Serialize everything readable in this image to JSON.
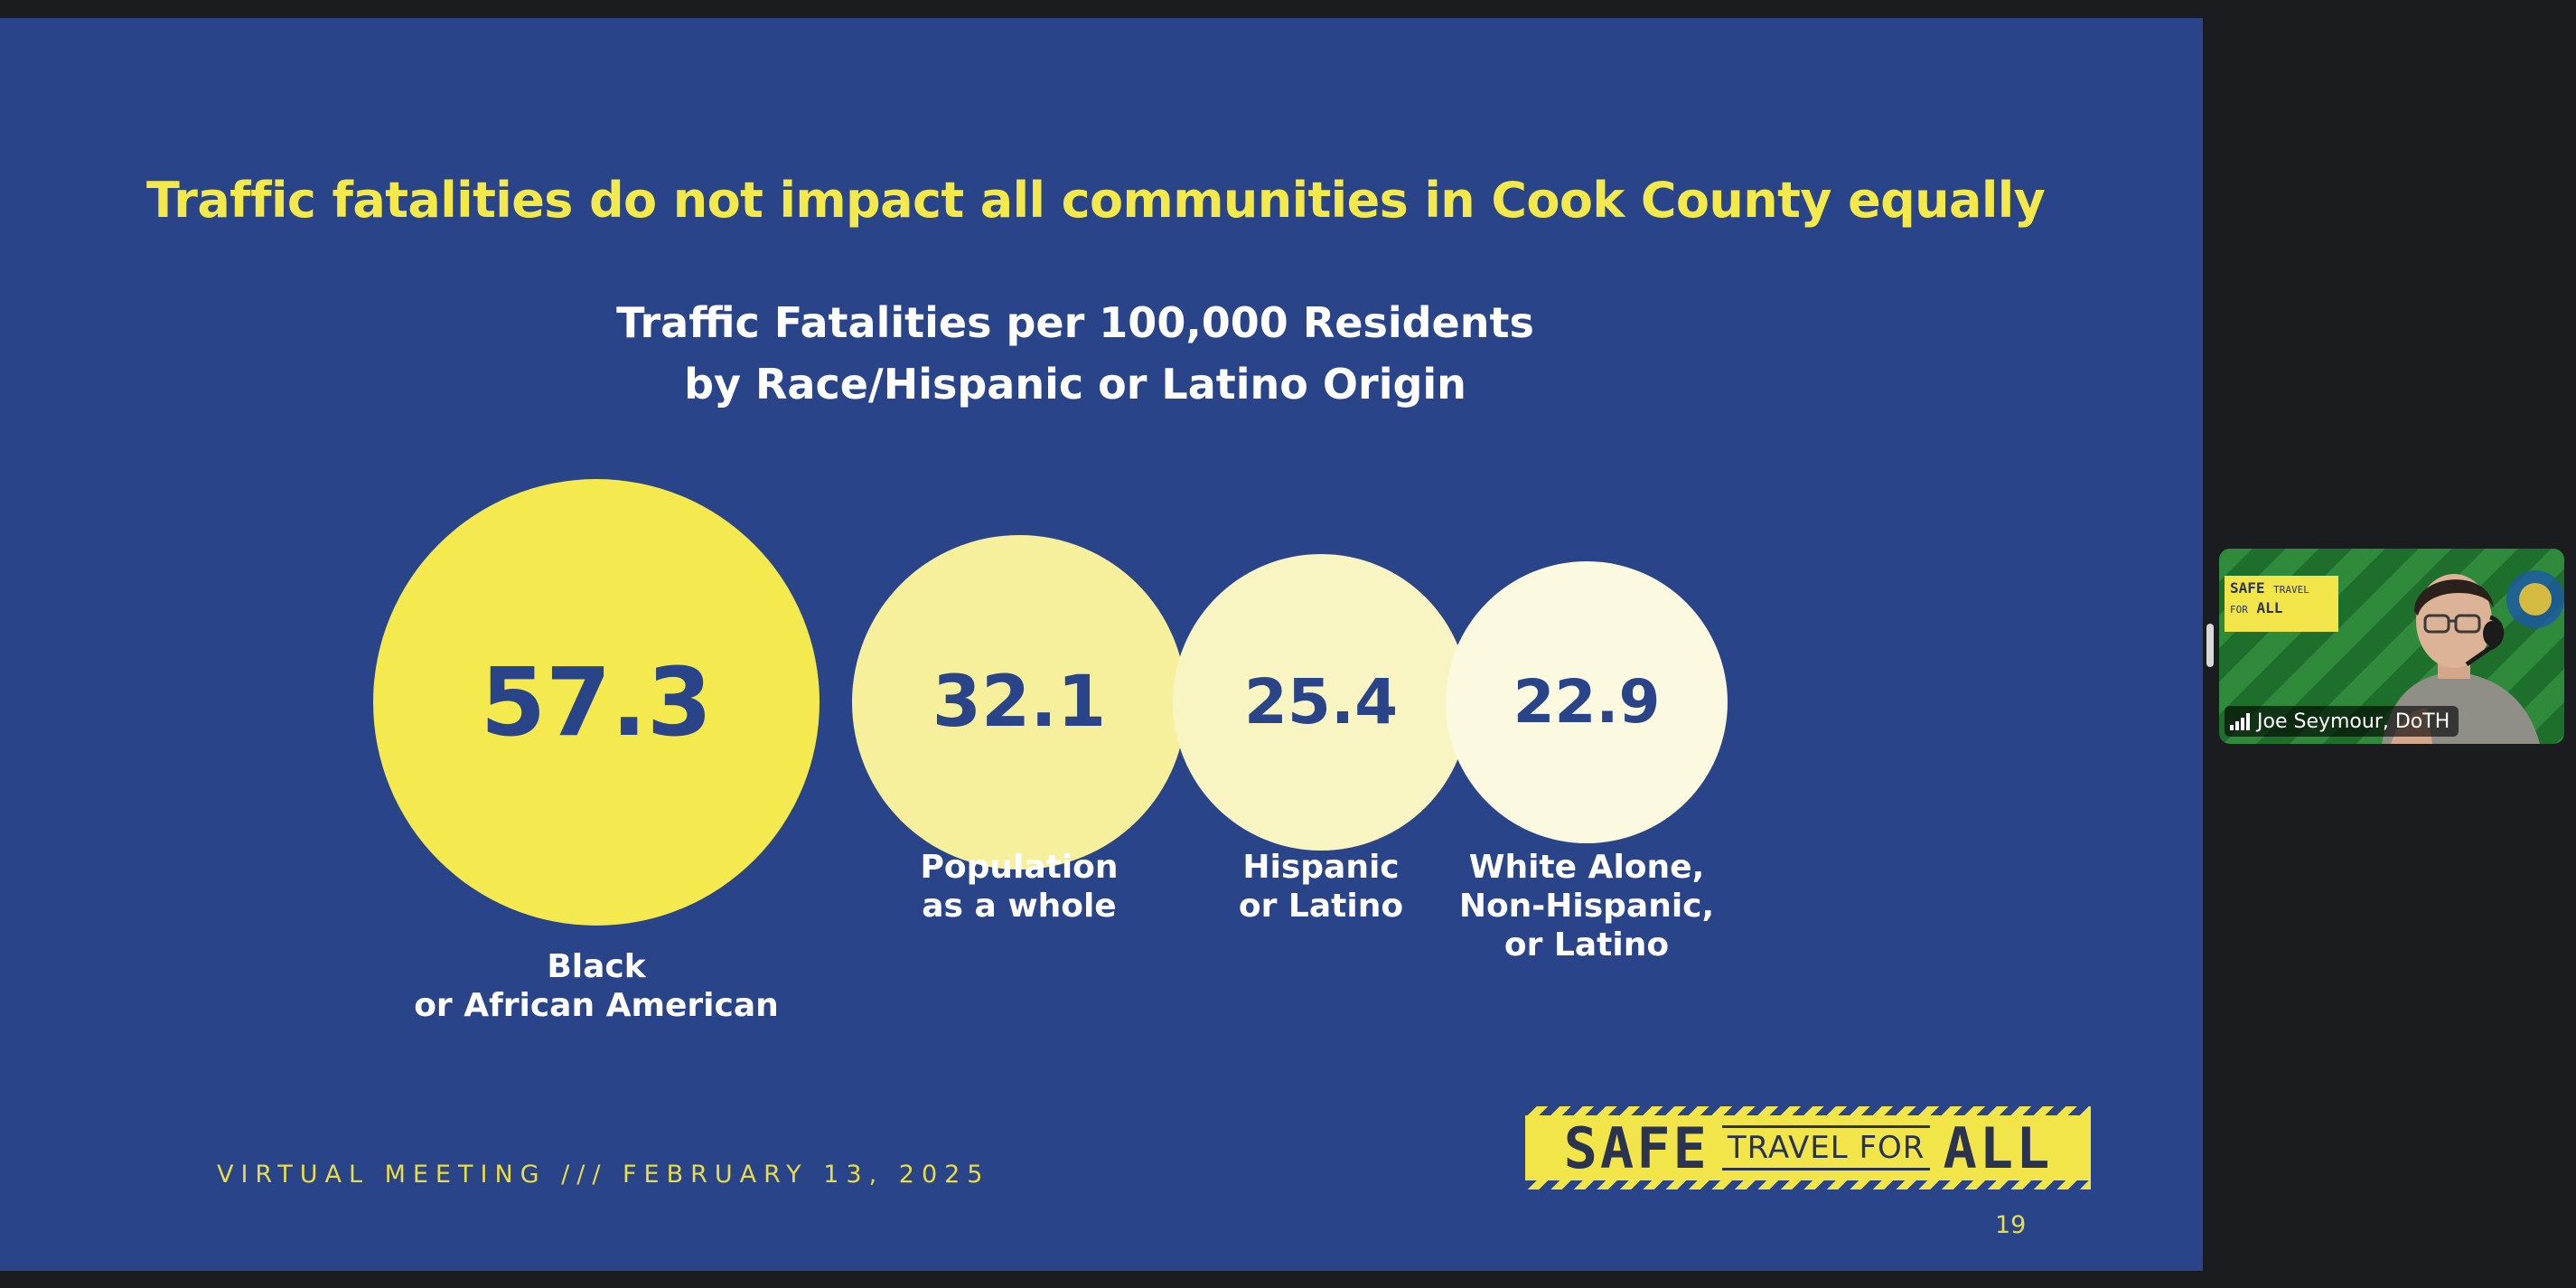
{
  "slide": {
    "title": "Traffic fatalities do not impact all communities in Cook County equally",
    "footer": "VIRTUAL MEETING /// FEBRUARY 13, 2025",
    "page_number": "19",
    "logo": {
      "safe": "SAFE",
      "travel_for": "TRAVEL FOR",
      "all": "ALL"
    }
  },
  "chart_data": {
    "type": "bubble",
    "title": [
      "Traffic Fatalities per 100,000 Residents",
      "by Race/Hispanic or Latino Origin"
    ],
    "categories": [
      [
        "Black",
        "or African American"
      ],
      [
        "Population",
        "as a whole"
      ],
      [
        "Hispanic",
        "or Latino"
      ],
      [
        "White Alone,",
        "Non-Hispanic,",
        "or Latino"
      ]
    ],
    "values": [
      57.3,
      32.1,
      25.4,
      22.9
    ],
    "value_labels": [
      "57.3",
      "32.1",
      "25.4",
      "22.9"
    ],
    "colors": [
      "#f4e94f",
      "#f6f09c",
      "#f9f5c2",
      "#fbf9df"
    ],
    "value_color": "#294489",
    "background_color": "#294489",
    "title_color": "#f4e94a"
  },
  "video": {
    "participant_name": "Joe Seymour, DoTH",
    "background_logo": {
      "line1": "SAFE",
      "line1_small": "TRAVEL",
      "line2_small": "FOR",
      "line2": "ALL"
    }
  }
}
